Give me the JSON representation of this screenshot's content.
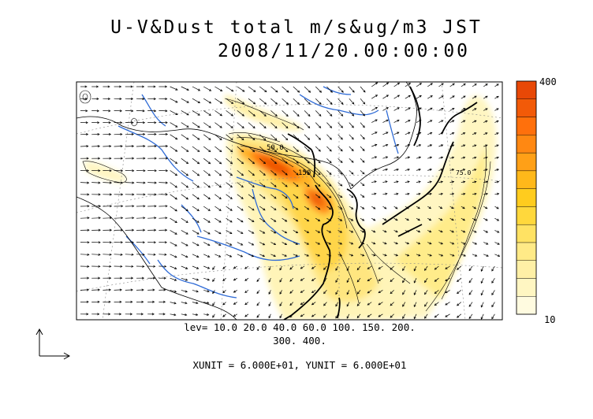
{
  "title": {
    "line1": "U-V&Dust total m/s&ug/m3 JST",
    "line2": "2008/11/20.00:00:00"
  },
  "levels_text": {
    "line1": "lev= 10.0 20.0 40.0 60.0 100. 150. 200.",
    "line2": "300. 400."
  },
  "unit_text": "XUNIT = 6.000E+01, YUNIT = 6.000E+01",
  "colorbar": {
    "max_label": "400",
    "min_label": "10",
    "colors": [
      "#fffbe0",
      "#fff6c2",
      "#fff0a6",
      "#ffea87",
      "#ffe263",
      "#ffd83c",
      "#ffcc1e",
      "#ffb81a",
      "#ffa017",
      "#ff8812",
      "#ff700c",
      "#f25a08",
      "#e84806"
    ]
  },
  "contour_labels": [
    "50.0",
    "150",
    "75.0"
  ],
  "colors": {
    "coast": "#000000",
    "rivers": "#2f6bd6",
    "borders": "#000000",
    "grid": "#888888"
  }
}
